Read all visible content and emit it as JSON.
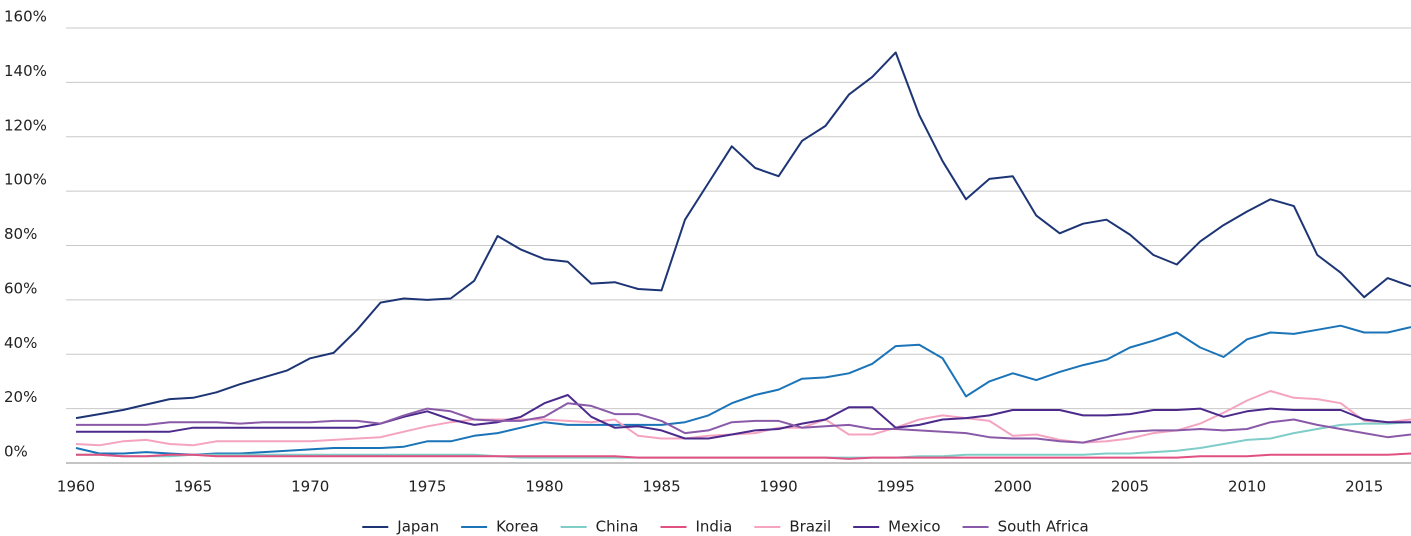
{
  "chart_data": {
    "type": "line",
    "x": [
      1960,
      1961,
      1962,
      1963,
      1964,
      1965,
      1966,
      1967,
      1968,
      1969,
      1970,
      1971,
      1972,
      1973,
      1974,
      1975,
      1976,
      1977,
      1978,
      1979,
      1980,
      1981,
      1982,
      1983,
      1984,
      1985,
      1986,
      1987,
      1988,
      1989,
      1990,
      1991,
      1992,
      1993,
      1994,
      1995,
      1996,
      1997,
      1998,
      1999,
      2000,
      2001,
      2002,
      2003,
      2004,
      2005,
      2006,
      2007,
      2008,
      2009,
      2010,
      2011,
      2012,
      2013,
      2014,
      2015,
      2016,
      2017
    ],
    "series": [
      {
        "name": "Japan",
        "color": "#1d3575",
        "values": [
          16.5,
          18,
          19.5,
          21.5,
          23.5,
          24,
          26,
          29,
          31.5,
          34,
          38.5,
          40.5,
          49,
          59,
          60.5,
          60,
          60.5,
          67,
          83.5,
          78.5,
          75,
          74,
          66,
          66.5,
          64,
          63.5,
          89.5,
          103,
          116.5,
          108.5,
          105.5,
          118.5,
          124,
          135.5,
          142,
          151,
          128,
          111,
          97,
          104.5,
          105.5,
          91,
          84.5,
          88,
          89.5,
          84,
          76.5,
          73,
          81.5,
          87.5,
          92.5,
          97,
          94.5,
          76.5,
          70,
          61,
          68,
          65
        ]
      },
      {
        "name": "Korea",
        "color": "#1b74b8",
        "values": [
          5.5,
          3.5,
          3.5,
          4,
          3.5,
          3,
          3.5,
          3.5,
          4,
          4.5,
          5,
          5.5,
          5.5,
          5.5,
          6,
          8,
          8,
          10,
          11,
          13,
          15,
          14,
          14,
          14,
          14,
          14,
          15,
          17.5,
          22,
          25,
          27,
          31,
          31.5,
          33,
          36.5,
          43,
          43.5,
          38.5,
          24.5,
          30,
          33,
          30.5,
          33.5,
          36,
          38,
          42.5,
          45,
          48,
          42.5,
          39,
          45.5,
          48,
          47.5,
          49,
          50.5,
          48,
          48,
          50
        ]
      },
      {
        "name": "China",
        "color": "#7ecdc8",
        "values": [
          3,
          3,
          2.5,
          2.5,
          2.5,
          3,
          3,
          3,
          3,
          3,
          3,
          3,
          3,
          3,
          3,
          3,
          3,
          3,
          2.5,
          2,
          2,
          2,
          2,
          2,
          2,
          2,
          2,
          2,
          2,
          2,
          2,
          2,
          2,
          2,
          2,
          2,
          2.5,
          2.5,
          3,
          3,
          3,
          3,
          3,
          3,
          3.5,
          3.5,
          4,
          4.5,
          5.5,
          7,
          8.5,
          9,
          11,
          12.5,
          14,
          14.5,
          14.5,
          15
        ]
      },
      {
        "name": "India",
        "color": "#e05080",
        "values": [
          3,
          3,
          2.5,
          2.5,
          3,
          3,
          2.5,
          2.5,
          2.5,
          2.5,
          2.5,
          2.5,
          2.5,
          2.5,
          2.5,
          2.5,
          2.5,
          2.5,
          2.5,
          2.5,
          2.5,
          2.5,
          2.5,
          2.5,
          2,
          2,
          2,
          2,
          2,
          2,
          2,
          2,
          2,
          1.5,
          2,
          2,
          2,
          2,
          2,
          2,
          2,
          2,
          2,
          2,
          2,
          2,
          2,
          2,
          2.5,
          2.5,
          2.5,
          3,
          3,
          3,
          3,
          3,
          3,
          3.5
        ]
      },
      {
        "name": "Brazil",
        "color": "#f4a4c0",
        "values": [
          7,
          6.5,
          8,
          8.5,
          7,
          6.5,
          8,
          8,
          8,
          8,
          8,
          8.5,
          9,
          9.5,
          11.5,
          13.5,
          15,
          16,
          16,
          16,
          16,
          15.5,
          15,
          16,
          10,
          9,
          9,
          10,
          10.5,
          11,
          13,
          13,
          16,
          10.5,
          10.5,
          13,
          16,
          17.5,
          16.5,
          15.5,
          10,
          10.5,
          8.5,
          7.5,
          8,
          9,
          11,
          12,
          14.5,
          18.5,
          23,
          26.5,
          24,
          23.5,
          22,
          15.5,
          15,
          16
        ]
      },
      {
        "name": "Mexico",
        "color": "#4b2a8c",
        "values": [
          11.5,
          11.5,
          11.5,
          11.5,
          11.5,
          13,
          13,
          13,
          13,
          13,
          13,
          13,
          13,
          14.5,
          17,
          19,
          16,
          14,
          15,
          17,
          22,
          25,
          17,
          13,
          13.5,
          12,
          9,
          9,
          10.5,
          12,
          12.5,
          14.5,
          16,
          20.5,
          20.5,
          13,
          14,
          16,
          16.5,
          17.5,
          19.5,
          19.5,
          19.5,
          17.5,
          17.5,
          18,
          19.5,
          19.5,
          20,
          17,
          19,
          20,
          19.5,
          19.5,
          19.5,
          16,
          15,
          15
        ]
      },
      {
        "name": "South Africa",
        "color": "#8a5aa8",
        "values": [
          14,
          14,
          14,
          14,
          15,
          15,
          15,
          14.5,
          15,
          15,
          15,
          15.5,
          15.5,
          14.5,
          17.5,
          20,
          19,
          16,
          15.5,
          15.5,
          17,
          22,
          21,
          18,
          18,
          15.5,
          11,
          12,
          15,
          15.5,
          15.5,
          13,
          13.5,
          14,
          12.5,
          12.5,
          12,
          11.5,
          11,
          9.5,
          9,
          9,
          8,
          7.5,
          9.5,
          11.5,
          12,
          12,
          12.5,
          12,
          12.5,
          15,
          16,
          14,
          12.5,
          11,
          9.5,
          10.5
        ]
      }
    ],
    "xlim": [
      1959.5,
      2017
    ],
    "xticks": [
      1960,
      1965,
      1970,
      1975,
      1980,
      1985,
      1990,
      1995,
      2000,
      2005,
      2010,
      2015
    ],
    "ylim": [
      0,
      160
    ],
    "yticks": [
      {
        "value": 0,
        "label": "0%"
      },
      {
        "value": 20,
        "label": "20%"
      },
      {
        "value": 40,
        "label": "40%"
      },
      {
        "value": 60,
        "label": "60%"
      },
      {
        "value": 80,
        "label": "80%"
      },
      {
        "value": 100,
        "label": "100%"
      },
      {
        "value": 120,
        "label": "120%"
      },
      {
        "value": 140,
        "label": "140%"
      },
      {
        "value": 160,
        "label": "160%"
      }
    ],
    "grid": true,
    "legend": "bottom"
  }
}
